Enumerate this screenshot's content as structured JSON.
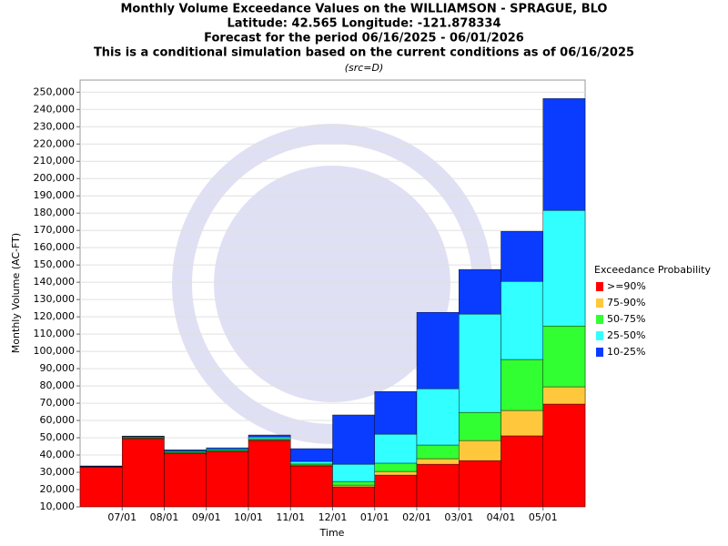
{
  "chart_data": {
    "type": "stacked-bar",
    "title": [
      "Monthly Volume Exceedance Values on the WILLIAMSON - SPRAGUE, BLO",
      "Latitude: 42.565 Longitude: -121.878334",
      "Forecast for the period 06/16/2025 - 06/01/2026",
      "This is a conditional simulation based on the current conditions as of 06/16/2025"
    ],
    "subtitle": "(src=D)",
    "x_label": "Time",
    "y_label": "Monthly Volume (AC-FT)",
    "legend_title": "Exceedance Probability",
    "legend_position": "right",
    "categories": [
      null,
      "07/01",
      "08/01",
      "09/01",
      "10/01",
      "11/01",
      "12/01",
      "01/01",
      "02/01",
      "03/01",
      "04/01",
      "05/01"
    ],
    "series": [
      {
        "name": ">=90%",
        "color": "#ff0000",
        "values": [
          33000,
          49500,
          41000,
          42000,
          48400,
          33700,
          21600,
          28400,
          34700,
          36800,
          51100,
          69500
        ]
      },
      {
        "name": "75-90%",
        "color": "#ffc83c",
        "values": [
          100,
          300,
          300,
          300,
          400,
          500,
          1000,
          2100,
          3200,
          11600,
          14700,
          10000
        ]
      },
      {
        "name": "50-75%",
        "color": "#32ff32",
        "values": [
          100,
          500,
          400,
          600,
          700,
          600,
          2100,
          4800,
          7900,
          16300,
          29500,
          35200
        ]
      },
      {
        "name": "25-50%",
        "color": "#32ffff",
        "values": [
          200,
          400,
          700,
          700,
          1000,
          1500,
          10000,
          16800,
          32600,
          56900,
          45200,
          66900
        ]
      },
      {
        "name": "10-25%",
        "color": "#0a3cff",
        "values": [
          300,
          300,
          600,
          600,
          1100,
          7400,
          28500,
          24700,
          44200,
          25800,
          29000,
          64700
        ]
      }
    ],
    "ylim": [
      10000,
      257000
    ],
    "yticks": [
      {
        "value": 10000,
        "label": "10,000"
      },
      {
        "value": 20000,
        "label": "20,000"
      },
      {
        "value": 30000,
        "label": "30,000"
      },
      {
        "value": 40000,
        "label": "40,000"
      },
      {
        "value": 50000,
        "label": "50,000"
      },
      {
        "value": 60000,
        "label": "60,000"
      },
      {
        "value": 70000,
        "label": "70,000"
      },
      {
        "value": 80000,
        "label": "80,000"
      },
      {
        "value": 90000,
        "label": "90,000"
      },
      {
        "value": 100000,
        "label": "100,000"
      },
      {
        "value": 110000,
        "label": "110,000"
      },
      {
        "value": 120000,
        "label": "120,000"
      },
      {
        "value": 130000,
        "label": "130,000"
      },
      {
        "value": 140000,
        "label": "140,000"
      },
      {
        "value": 150000,
        "label": "150,000"
      },
      {
        "value": 160000,
        "label": "160,000"
      },
      {
        "value": 170000,
        "label": "170,000"
      },
      {
        "value": 180000,
        "label": "180,000"
      },
      {
        "value": 190000,
        "label": "190,000"
      },
      {
        "value": 200000,
        "label": "200,000"
      },
      {
        "value": 210000,
        "label": "210,000"
      },
      {
        "value": 220000,
        "label": "220,000"
      },
      {
        "value": 230000,
        "label": "230,000"
      },
      {
        "value": 240000,
        "label": "240,000"
      },
      {
        "value": 250000,
        "label": "250,000"
      }
    ],
    "grid": true
  }
}
